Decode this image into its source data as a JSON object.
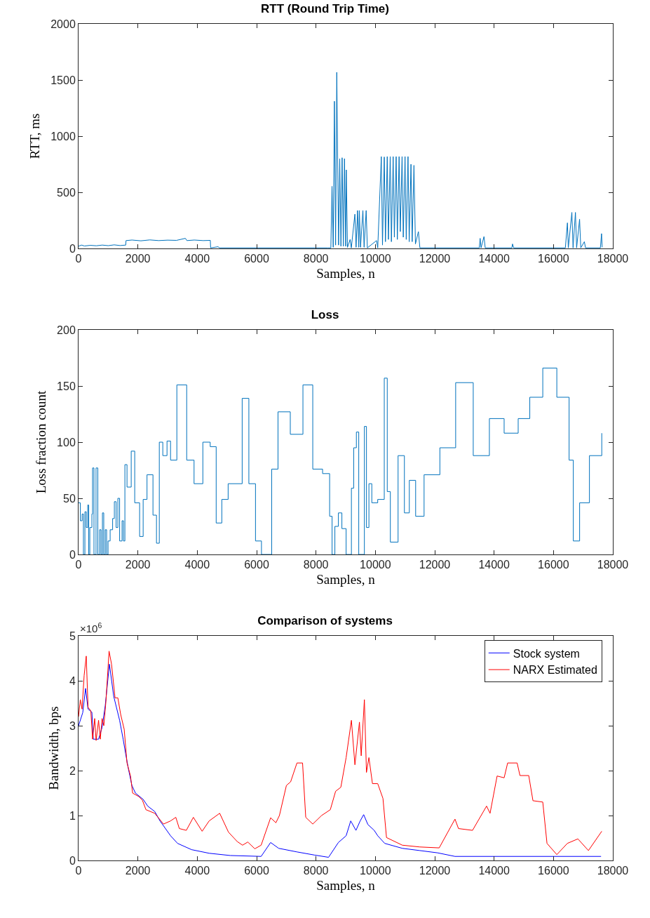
{
  "chart_data": [
    {
      "type": "line",
      "title": "RTT (Round Trip Time)",
      "xlabel": "Samples, n",
      "ylabel": "RTT, ms",
      "xlim": [
        0,
        18000
      ],
      "xticks": [
        0,
        2000,
        4000,
        6000,
        8000,
        10000,
        12000,
        14000,
        16000,
        18000
      ],
      "ylim": [
        0,
        2000
      ],
      "yticks": [
        0,
        500,
        1000,
        1500,
        2000
      ],
      "grid": false,
      "legend": false,
      "series": [
        {
          "color": "#0072bd",
          "x": [
            0,
            100,
            200,
            400,
            600,
            800,
            1000,
            1200,
            1400,
            1590,
            1600,
            1800,
            2100,
            2400,
            2700,
            3000,
            3300,
            3600,
            3650,
            3900,
            4200,
            4440,
            4450,
            4700,
            4750,
            6000,
            8400,
            8500,
            8540,
            8580,
            8620,
            8660,
            8700,
            8730,
            8760,
            8800,
            8840,
            8880,
            8920,
            8960,
            9000,
            9020,
            9060,
            9150,
            9190,
            9310,
            9350,
            9400,
            9440,
            9460,
            9500,
            9580,
            9620,
            9690,
            9730,
            10040,
            10080,
            10200,
            10240,
            10300,
            10340,
            10400,
            10440,
            10500,
            10540,
            10600,
            10640,
            10700,
            10740,
            10800,
            10840,
            10900,
            10940,
            11000,
            11040,
            11100,
            11140,
            11200,
            11240,
            11300,
            11350,
            11450,
            11500,
            13500,
            13530,
            13560,
            13660,
            13700,
            14600,
            14620,
            14660,
            16400,
            16470,
            16500,
            16620,
            16660,
            16740,
            16780,
            16880,
            16920,
            17040,
            17080,
            17580,
            17620,
            17640
          ],
          "values": [
            20,
            30,
            22,
            28,
            24,
            30,
            25,
            32,
            26,
            30,
            70,
            75,
            68,
            76,
            70,
            74,
            72,
            90,
            70,
            75,
            70,
            72,
            5,
            15,
            5,
            5,
            5,
            5,
            553,
            10,
            1311,
            30,
            1569,
            800,
            30,
            800,
            20,
            808,
            20,
            800,
            20,
            700,
            10,
            80,
            5,
            305,
            10,
            338,
            10,
            338,
            10,
            338,
            10,
            338,
            5,
            70,
            5,
            818,
            30,
            815,
            60,
            818,
            80,
            818,
            60,
            818,
            100,
            818,
            80,
            818,
            150,
            818,
            100,
            818,
            80,
            818,
            60,
            750,
            60,
            740,
            40,
            150,
            5,
            5,
            90,
            5,
            106,
            5,
            5,
            40,
            5,
            5,
            228,
            5,
            321,
            5,
            321,
            5,
            260,
            5,
            60,
            5,
            5,
            132,
            10
          ]
        }
      ]
    },
    {
      "type": "step",
      "title": "Loss",
      "xlabel": "Samples, n",
      "ylabel": "Loss fraction count",
      "xlim": [
        0,
        18000
      ],
      "xticks": [
        0,
        2000,
        4000,
        6000,
        8000,
        10000,
        12000,
        14000,
        16000,
        18000
      ],
      "ylim": [
        0,
        200
      ],
      "yticks": [
        0,
        50,
        100,
        150,
        200
      ],
      "grid": false,
      "legend": false,
      "series": [
        {
          "color": "#0072bd",
          "x": [
            0,
            60,
            120,
            165,
            215,
            260,
            310,
            343,
            380,
            450,
            473,
            520,
            590,
            650,
            710,
            757,
            805,
            850,
            900,
            946,
            994,
            1065,
            1148,
            1207,
            1266,
            1325,
            1384,
            1467,
            1514,
            1562,
            1633,
            1775,
            1893,
            2058,
            2177,
            2307,
            2508,
            2626,
            2721,
            2839,
            2981,
            3100,
            3312,
            3644,
            3892,
            4188,
            4436,
            4637,
            4827,
            5040,
            5513,
            5738,
            5962,
            6163,
            6507,
            6720,
            7134,
            7560,
            7891,
            8222,
            8459,
            8542,
            8636,
            8754,
            8872,
            9015,
            9193,
            9270,
            9360,
            9440,
            9630,
            9700,
            9783,
            9880,
            10079,
            10300,
            10400,
            10505,
            10765,
            10978,
            11144,
            11357,
            11641,
            12173,
            12705,
            13297,
            13841,
            14338,
            14811,
            15202,
            15640,
            16113,
            16527,
            16668,
            16881,
            17212,
            17627
          ],
          "values": [
            46,
            30,
            36,
            0,
            38,
            24,
            44,
            0,
            24,
            36,
            77,
            0,
            77,
            0,
            22,
            0,
            37,
            0,
            22,
            0,
            12,
            22,
            32,
            47,
            24,
            50,
            12,
            30,
            12,
            80,
            60,
            92,
            46,
            16,
            49,
            71,
            35,
            10,
            100,
            88,
            101,
            84,
            151,
            84,
            63,
            100,
            96,
            28,
            49,
            63,
            139,
            63,
            12,
            0,
            76,
            127,
            107,
            151,
            76,
            72,
            34,
            0,
            25,
            37,
            23,
            0,
            59,
            95,
            109,
            0,
            114,
            24,
            63,
            46,
            49,
            157,
            56,
            11,
            88,
            37,
            66,
            34,
            71,
            95,
            153,
            88,
            121,
            108,
            121,
            140,
            166,
            140,
            84,
            12,
            46,
            88,
            108
          ]
        }
      ]
    },
    {
      "type": "line",
      "title": "Comparison of systems",
      "xlabel": "Samples, n",
      "ylabel": "Bandwidth, bps",
      "annotations": [
        "×10$^{6}$"
      ],
      "xlim": [
        0,
        18000
      ],
      "xticks": [
        0,
        2000,
        4000,
        6000,
        8000,
        10000,
        12000,
        14000,
        16000,
        18000
      ],
      "ylim": [
        0,
        5
      ],
      "yticks": [
        0,
        1,
        2,
        3,
        4,
        5
      ],
      "grid": false,
      "legend": "top right",
      "series": [
        {
          "name": "Stock system",
          "color": "#0000ff",
          "x": [
            0,
            142,
            237,
            320,
            450,
            497,
            675,
            793,
            900,
            1041,
            1183,
            1384,
            1503,
            1585,
            1680,
            1798,
            1917,
            2177,
            2331,
            2567,
            2745,
            3100,
            3336,
            3809,
            4400,
            5111,
            6152,
            6471,
            6743,
            7358,
            7950,
            8423,
            8754,
            9015,
            9170,
            9346,
            9488,
            9606,
            9748,
            9961,
            10079,
            10316,
            10907,
            11499,
            12091,
            12682,
            17603
          ],
          "values": [
            3.0,
            3.29,
            3.83,
            3.37,
            3.3,
            2.7,
            2.7,
            2.96,
            3.45,
            4.37,
            3.66,
            3.12,
            2.7,
            2.38,
            2.04,
            1.67,
            1.5,
            1.36,
            1.21,
            1.09,
            0.88,
            0.55,
            0.38,
            0.24,
            0.16,
            0.11,
            0.09,
            0.4,
            0.27,
            0.19,
            0.12,
            0.07,
            0.4,
            0.55,
            0.88,
            0.67,
            0.88,
            1.02,
            0.8,
            0.67,
            0.55,
            0.38,
            0.27,
            0.22,
            0.17,
            0.09,
            0.09
          ]
        },
        {
          "name": "NARX Estimated",
          "color": "#ff0000",
          "x": [
            0,
            60,
            118,
            189,
            260,
            320,
            414,
            473,
            544,
            592,
            675,
            733,
            793,
            852,
            923,
            1029,
            1112,
            1230,
            1325,
            1420,
            1538,
            1633,
            1751,
            1822,
            2035,
            2153,
            2271,
            2567,
            2863,
            3100,
            3277,
            3395,
            3631,
            3868,
            4164,
            4400,
            4755,
            5051,
            5347,
            5525,
            5702,
            5939,
            6152,
            6471,
            6649,
            6767,
            7003,
            7145,
            7358,
            7547,
            7654,
            7891,
            8187,
            8482,
            8660,
            8837,
            9015,
            9193,
            9311,
            9464,
            9523,
            9630,
            9700,
            9783,
            9902,
            10079,
            10256,
            10375,
            10907,
            11499,
            12150,
            12682,
            12800,
            13273,
            13746,
            13864,
            14101,
            14338,
            14456,
            14776,
            14871,
            15167,
            15309,
            15640,
            15782,
            16113,
            16468,
            16823,
            17178,
            17627
          ],
          "values": [
            3.2,
            3.58,
            3.37,
            4.12,
            4.55,
            3.41,
            3.33,
            2.7,
            3.16,
            2.67,
            3.12,
            2.7,
            3.16,
            3.0,
            3.54,
            4.66,
            4.37,
            3.62,
            3.62,
            3.25,
            2.92,
            2.17,
            1.88,
            1.5,
            1.42,
            1.34,
            1.13,
            1.05,
            0.81,
            0.88,
            0.96,
            0.71,
            0.67,
            0.96,
            0.65,
            0.88,
            1.05,
            0.63,
            0.42,
            0.34,
            0.41,
            0.26,
            0.34,
            0.95,
            0.84,
            1.0,
            1.67,
            1.75,
            2.17,
            2.17,
            0.96,
            0.81,
            1.0,
            1.13,
            1.54,
            1.63,
            2.29,
            3.12,
            2.13,
            3.08,
            2.33,
            3.58,
            1.96,
            2.29,
            1.71,
            1.71,
            1.38,
            0.51,
            0.34,
            0.3,
            0.28,
            0.92,
            0.71,
            0.67,
            1.21,
            1.05,
            1.88,
            1.84,
            2.17,
            2.17,
            1.89,
            1.89,
            1.33,
            1.3,
            0.38,
            0.13,
            0.38,
            0.48,
            0.22,
            0.65
          ]
        }
      ]
    }
  ]
}
